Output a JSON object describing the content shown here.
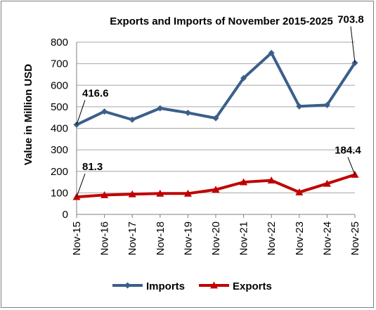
{
  "chart_data": {
    "type": "line",
    "title": "Exports and Imports of November 2015-2025",
    "xlabel": "",
    "ylabel": "Value in Million USD",
    "categories": [
      "Nov-15",
      "Nov-16",
      "Nov-17",
      "Nov-18",
      "Nov-19",
      "Nov-20",
      "Nov-21",
      "Nov-22",
      "Nov-23",
      "Nov-24",
      "Nov-25"
    ],
    "ylim": [
      0,
      800
    ],
    "yticks": [
      0,
      100,
      200,
      300,
      400,
      500,
      600,
      700,
      800
    ],
    "grid": true,
    "legend_position": "bottom",
    "series": [
      {
        "name": "Imports",
        "color": "#3b5f8a",
        "marker": "diamond",
        "values": [
          416.6,
          478,
          440,
          493,
          472,
          447,
          633,
          750,
          502,
          508,
          703.8
        ]
      },
      {
        "name": "Exports",
        "color": "#c00000",
        "marker": "triangle",
        "values": [
          81.3,
          90,
          94,
          97,
          97,
          115,
          150,
          158,
          103,
          143,
          184.4
        ]
      }
    ],
    "annotations": [
      {
        "series": "Imports",
        "index": 0,
        "text": "416.6"
      },
      {
        "series": "Imports",
        "index": 10,
        "text": "703.8"
      },
      {
        "series": "Exports",
        "index": 0,
        "text": "81.3"
      },
      {
        "series": "Exports",
        "index": 10,
        "text": "184.4"
      }
    ]
  }
}
